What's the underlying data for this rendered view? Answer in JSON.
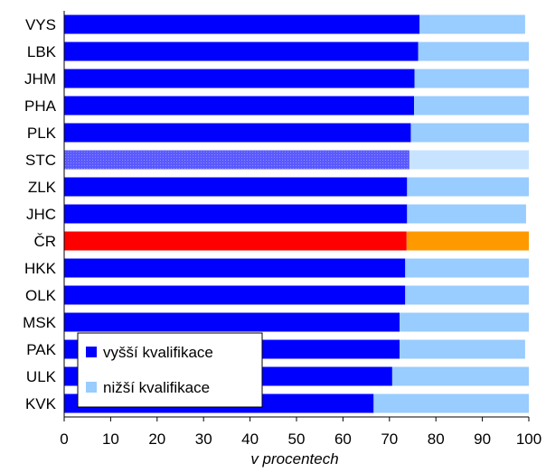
{
  "chart_data": {
    "type": "bar",
    "orientation": "horizontal",
    "stacked": true,
    "categories": [
      "VYS",
      "LBK",
      "JHM",
      "PHA",
      "PLK",
      "STC",
      "ZLK",
      "JHC",
      "ČR",
      "HKK",
      "OLK",
      "MSK",
      "PAK",
      "ULK",
      "KVK"
    ],
    "series": [
      {
        "name": "vyšší kvalifikace",
        "color": "#0000ff",
        "values": [
          76.5,
          76.2,
          75.4,
          75.3,
          74.6,
          74.3,
          73.8,
          73.8,
          73.7,
          73.4,
          73.4,
          72.2,
          72.2,
          70.6,
          66.6
        ]
      },
      {
        "name": "nižší kvalifikace",
        "color": "#99ccff",
        "values": [
          22.7,
          23.8,
          24.6,
          24.7,
          25.4,
          25.7,
          26.2,
          25.6,
          26.3,
          26.6,
          26.6,
          27.8,
          27.0,
          29.4,
          33.4
        ]
      }
    ],
    "highlights": {
      "STC": {
        "colors": [
          "#5555ff",
          "#c7e3ff"
        ],
        "pattern": "dotted"
      },
      "ČR": {
        "colors": [
          "#ff0000",
          "#ff9900"
        ]
      }
    },
    "xlim": [
      0,
      100
    ],
    "xticks": [
      0,
      10,
      20,
      30,
      40,
      50,
      60,
      70,
      80,
      90,
      100
    ],
    "xlabel": "v procentech",
    "ylabel": "",
    "title": "",
    "grid": false,
    "legend": {
      "position": "bottom-left",
      "entries": [
        "vyšší kvalifikace",
        "nižší kvalifikace"
      ]
    }
  }
}
